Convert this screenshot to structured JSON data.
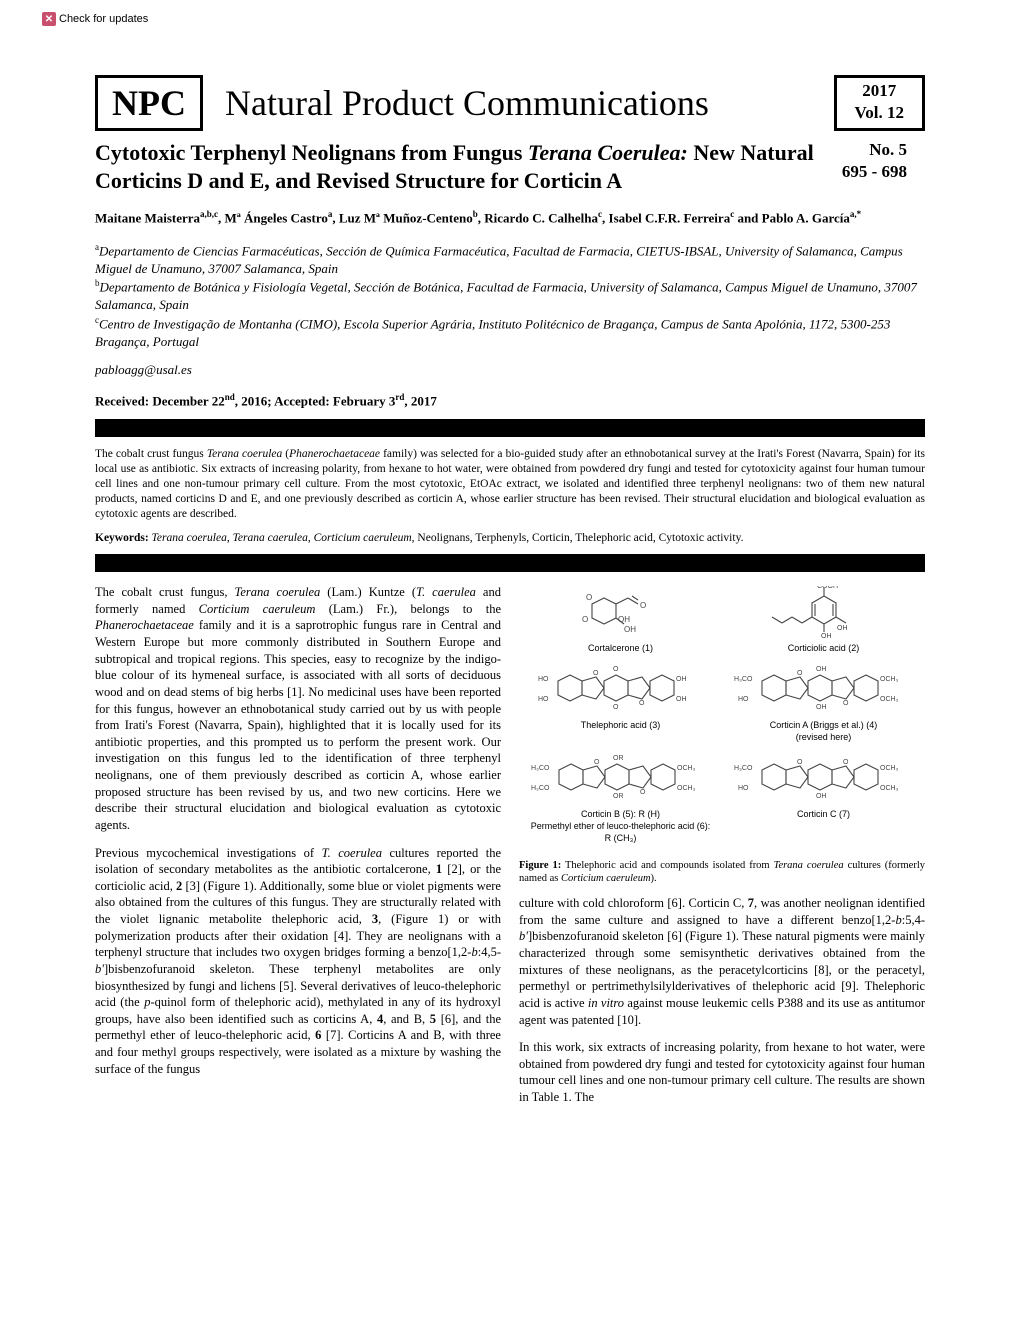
{
  "update_badge": "Check for updates",
  "journal": {
    "abbreviation": "NPC",
    "full_name": "Natural Product Communications",
    "year": "2017",
    "volume": "Vol. 12",
    "issue": "No. 5",
    "pages": "695 - 698"
  },
  "article": {
    "title_part1": "Cytotoxic Terphenyl Neolignans from Fungus ",
    "title_italic": "Terana Coerulea:",
    "title_part2": " New Natural Corticins D and E, and Revised Structure for Corticin A",
    "authors_html": "Maitane Maisterra<sup>a,b,c</sup>, Mª Ángeles Castro<sup>a</sup>, Luz Mª Muñoz-Centeno<sup>b</sup>, Ricardo C. Calhelha<sup>c</sup>, Isabel C.F.R. Ferreira<sup>c</sup> and Pablo A. García<sup>a,*</sup>",
    "affiliations": [
      "<sup>a</sup>Departamento de Ciencias Farmacéuticas, Sección de Química Farmacéutica, Facultad de Farmacia, CIETUS-IBSAL, University of Salamanca, Campus Miguel de Unamuno, 37007 Salamanca, Spain",
      "<sup>b</sup>Departamento de Botánica y Fisiología Vegetal, Sección de Botánica, Facultad de Farmacia, University of Salamanca, Campus Miguel de Unamuno, 37007 Salamanca, Spain",
      "<sup>c</sup>Centro de Investigação de Montanha (CIMO), Escola Superior Agrária, Instituto Politécnico de Bragança, Campus de Santa Apolónia, 1172, 5300-253 Bragança, Portugal"
    ],
    "email": "pabloagg@usal.es",
    "dates": "Received: December 22<sup>nd</sup>, 2016; Accepted: February 3<sup>rd</sup>, 2017",
    "abstract": "The cobalt crust fungus <i>Terana coerulea</i> (<i>Phanerochaetaceae</i> family) was selected for a bio-guided study after an ethnobotanical survey at the Irati's Forest (Navarra, Spain) for its local use as antibiotic. Six extracts of increasing polarity, from hexane to hot water, were obtained from powdered dry fungi and tested for cytotoxicity against four human tumour cell lines and one non-tumour primary cell culture. From the most cytotoxic, EtOAc extract, we isolated and identified three terphenyl neolignans: two of them new natural products, named corticins D and E, and one previously described as corticin A, whose earlier structure has been revised. Their structural elucidation and biological evaluation as cytotoxic agents are described.",
    "keywords_label": "Keywords:",
    "keywords_text": " <i>Terana coerulea</i>, <i>Terana caerulea</i>, <i>Corticium caeruleum</i>, Neolignans, Terphenyls, Corticin, Thelephoric acid, Cytotoxic activity."
  },
  "body": {
    "col1_p1": "The cobalt crust fungus, <i>Terana coerulea</i> (Lam.) Kuntze (<i>T. caerulea</i> and formerly named <i>Corticium caeruleum</i> (Lam.) Fr.), belongs to the <i>Phanerochaetaceae</i> family and it is a saprotrophic fungus rare in Central and Western Europe but more commonly distributed in Southern Europe and subtropical and tropical regions. This species, easy to recognize by the indigo-blue colour of its hymeneal surface, is associated with all sorts of deciduous wood and on dead stems of big herbs [1]. No medicinal uses have been reported for this fungus, however an ethnobotanical study carried out by us with people from Irati's Forest (Navarra, Spain), highlighted that it is locally used for its antibiotic properties, and this prompted us to perform the present work. Our investigation on this fungus led to the identification of three terphenyl neolignans, one of them previously described as corticin A, whose earlier proposed structure has been revised by us, and two new corticins. Here we describe their structural elucidation and biological evaluation as cytotoxic agents.",
    "col1_p2": "Previous mycochemical investigations of <i>T. coerulea</i> cultures reported the isolation of secondary metabolites as the antibiotic cortalcerone, <b>1</b> [2], or the corticiolic acid, <b>2</b> [3] (Figure 1). Additionally, some blue or violet pigments were also obtained from the cultures of this fungus. They are structurally related with the violet lignanic metabolite thelephoric acid, <b>3</b>, (Figure 1) or with polymerization products after their oxidation [4]. They are neolignans with a terphenyl structure that includes two oxygen bridges forming a benzo[1,2-<i>b</i>:4,5-<i>b'</i>]bisbenzofuranoid skeleton. These terphenyl metabolites are only biosynthesized by fungi and lichens [5]. Several derivatives of leuco-thelephoric acid (the <i>p</i>-quinol form of thelephoric acid), methylated in any of its hydroxyl groups, have also been identified such as corticins A, <b>4</b>, and B, <b>5</b> [6], and the permethyl ether of leuco-thelephoric acid, <b>6</b> [7]. Corticins A and B, with three and four methyl groups respectively, were isolated as a mixture by washing the surface of the fungus",
    "figure_caption": "<b>Figure 1:</b> Thelephoric acid and compounds isolated from <i>Terana coerulea</i> cultures (formerly named as <i>Corticium caeruleum</i>).",
    "col2_p1": "culture with cold chloroform [6]. Corticin C, <b>7</b>, was another neolignan identified from the same culture and assigned to have a different benzo[1,2-<i>b</i>:5,4-<i>b'</i>]bisbenzofuranoid skeleton [6] (Figure 1). These natural pigments were mainly characterized through some semisynthetic derivatives obtained from the mixtures of these neolignans, as the peracetylcorticins [8], or the peracetyl, permethyl or pertrimethylsilylderivatives of thelephoric acid [9]. Thelephoric acid is active <i>in vitro</i> against mouse leukemic cells P388 and its use as antitumor agent was patented [10].",
    "col2_p2": "In this work, six extracts of increasing polarity, from hexane to hot water, were obtained from powdered dry fungi and tested for cytotoxicity against four human tumour cell lines and one non-tumour primary cell culture. The results are shown in Table 1. The",
    "chem_labels": {
      "c1": "Cortalcerone (1)",
      "c2": "Corticiolic acid (2)",
      "c3": "Thelephoric acid (3)",
      "c4a": "Corticin A (Briggs et al.) (4)",
      "c4b": "(revised here)",
      "c5": "Corticin B (5): R (H)",
      "c6": "Permethyl ether of leuco-thelephoric acid (6): R (CH₃)",
      "c7": "Corticin C (7)"
    }
  },
  "colors": {
    "text": "#000000",
    "background": "#ffffff",
    "badge": "#c94f6f",
    "chem_stroke": "#454545"
  }
}
